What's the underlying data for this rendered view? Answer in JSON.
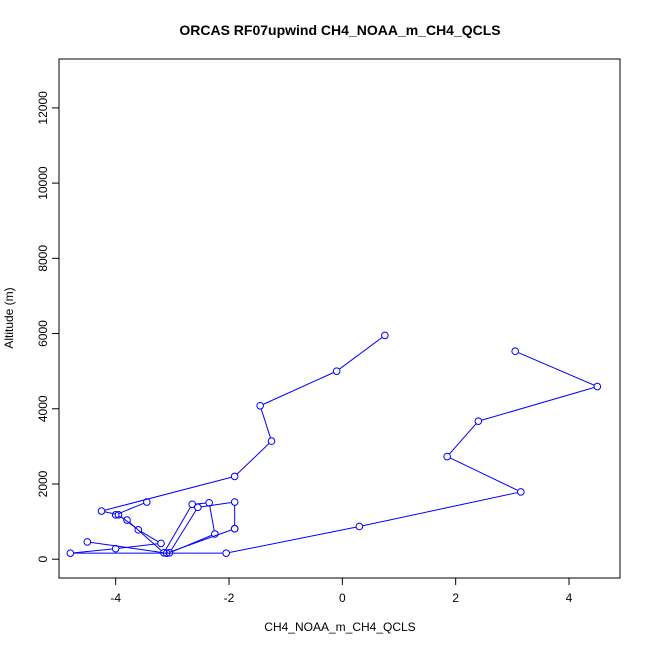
{
  "chart_data": {
    "type": "line",
    "title": "ORCAS RF07upwind CH4_NOAA_m_CH4_QCLS",
    "xlabel": "CH4_NOAA_m_CH4_QCLS",
    "ylabel": "Altitude (m)",
    "xlim": [
      -5.0,
      4.9
    ],
    "ylim": [
      -500,
      13300
    ],
    "x_ticks": [
      -4,
      -2,
      0,
      2,
      4
    ],
    "y_ticks": [
      0,
      2000,
      4000,
      6000,
      8000,
      10000,
      12000
    ],
    "grid": false,
    "series": [
      {
        "color": "#0000ff",
        "marker": "open-circle",
        "x": [
          0.75,
          -0.1,
          -1.45,
          -1.25,
          -1.9,
          -4.25,
          -3.95,
          -3.6,
          -3.2,
          -4.0,
          -4.8,
          -2.05,
          0.3,
          3.15,
          1.85,
          2.4,
          4.5,
          3.05
        ],
        "y": [
          5950,
          5000,
          4080,
          3140,
          2200,
          1280,
          1180,
          780,
          420,
          280,
          160,
          160,
          870,
          1790,
          2730,
          3670,
          4590,
          5530
        ]
      },
      {
        "color": "#0000ff",
        "marker": "open-circle",
        "x": [
          -3.45,
          -4.0,
          -3.8,
          -3.15,
          -2.65,
          -2.35,
          -2.25,
          -3.05,
          -2.55,
          -1.9,
          -1.9
        ],
        "y": [
          1520,
          1180,
          1040,
          170,
          1460,
          1500,
          670,
          170,
          1380,
          1520,
          810
        ]
      },
      {
        "color": "#0000ff",
        "marker": "open-circle",
        "x": [
          -4.5,
          -3.1,
          -1.9
        ],
        "y": [
          460,
          160,
          810
        ]
      }
    ]
  }
}
